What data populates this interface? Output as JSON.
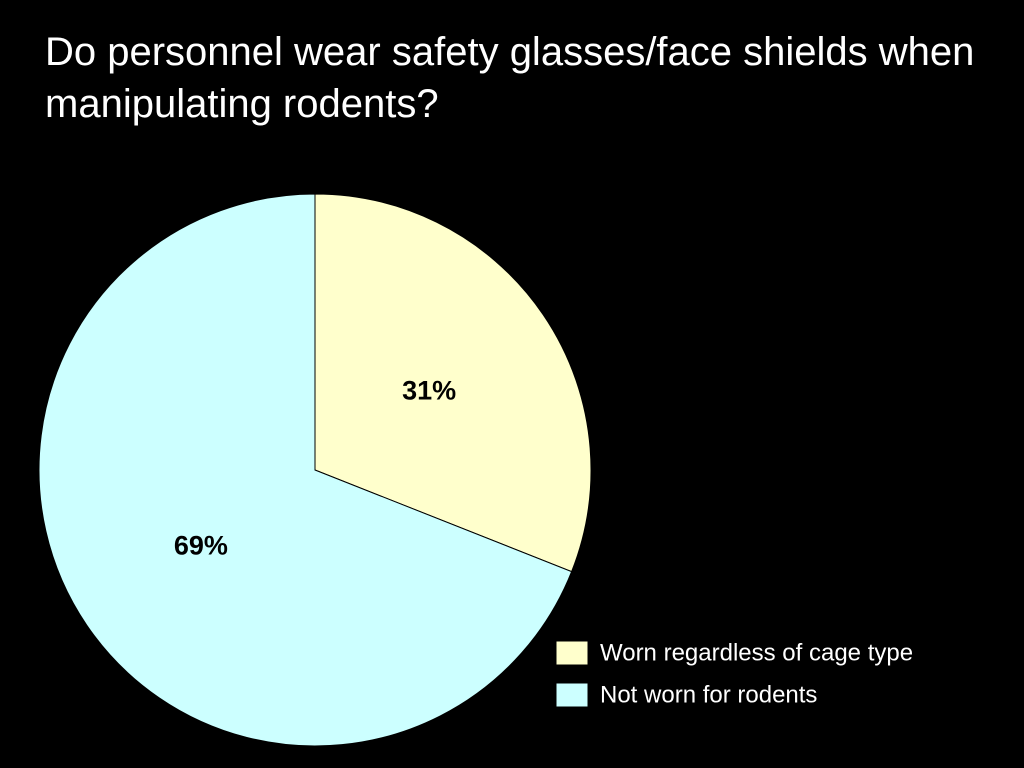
{
  "chart_data": {
    "type": "pie",
    "title": "Do personnel wear safety glasses/face shields when manipulating rodents?",
    "categories": [
      "Worn regardless of cage type",
      "Not worn for rodents"
    ],
    "values": [
      31,
      69
    ],
    "value_labels": [
      "31%",
      "69%"
    ],
    "colors": [
      "#ffffcc",
      "#ccffff"
    ],
    "legend": "lower right"
  }
}
